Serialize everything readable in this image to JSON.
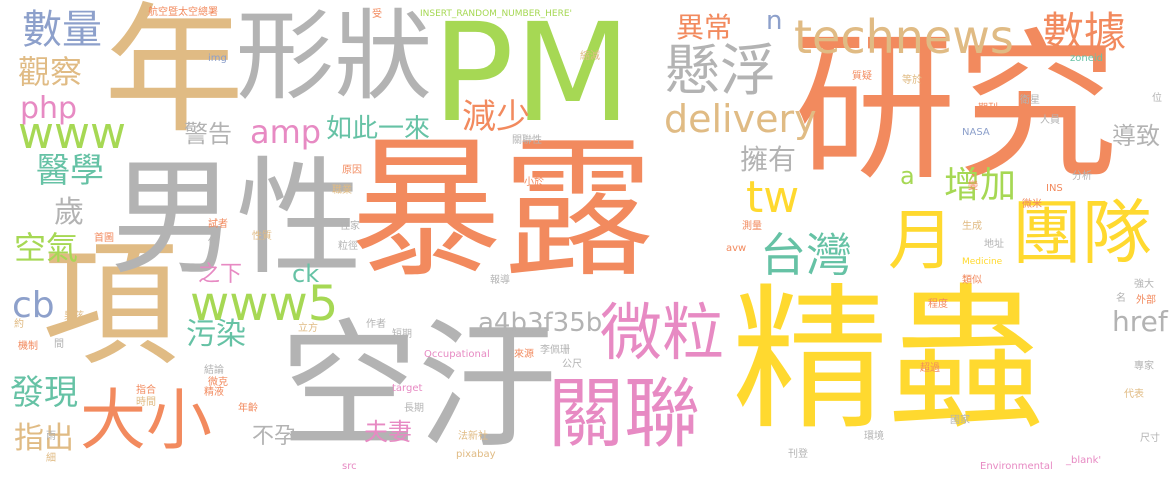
{
  "palette": {
    "orange": "#f28a5e",
    "tan": "#e0bb84",
    "gray": "#b3b3b3",
    "green": "#a6d854",
    "yellow": "#ffd92f",
    "pink": "#e78ac3",
    "teal": "#66c2a5",
    "blue": "#8da0cb"
  },
  "words": [
    "暴露",
    "精蟲",
    "研究",
    "PM",
    "年",
    "項",
    "男性",
    "空汙",
    "形狀",
    "technews",
    "關聯",
    "微粒",
    "大小",
    "團隊",
    "台灣",
    "月",
    "www5",
    "www",
    "懸浮",
    "數據",
    "delivery",
    "數量",
    "觀察",
    "php",
    "amp",
    "如此一來",
    "減少",
    "異常",
    "tw",
    "增加",
    "擁有",
    "a4b3f35b",
    "href",
    "cb",
    "空氣",
    "醫學",
    "歲",
    "發現",
    "指出",
    "污染",
    "夫妻",
    "不孕",
    "之下",
    "ck",
    "警告",
    "導致",
    "n",
    "a",
    "INSERT_RANDOM_NUMBER_HERE'",
    "航空暨太空總署",
    "受",
    "img",
    "zoneid",
    "縮減",
    "質疑",
    "等於",
    "期刊",
    "衛星",
    "位",
    "人員",
    "NASA",
    "分析",
    "INS",
    "關聯性",
    "原因",
    "小於",
    "職業",
    "變",
    "微米",
    "往家",
    "測量",
    "試者",
    "首圖",
    "僅",
    "性質",
    "生成",
    "地址",
    "粒徑",
    "avw",
    "Medicine",
    "類似",
    "報導",
    "強大",
    "名",
    "外部",
    "程度",
    "男孩",
    "約",
    "作者",
    "立方",
    "短期",
    "機制",
    "間",
    "Occupational",
    "李佩珊",
    "來源",
    "公尺",
    "結論",
    "微克",
    "指合",
    "精液",
    "時間",
    "超過",
    "專家",
    "代表",
    "target",
    "年齡",
    "長期",
    "國家",
    "雨",
    "細",
    "法新社",
    "尺寸",
    "src",
    "pixabay",
    "環境",
    "刊登",
    "Environmental",
    "_blank'"
  ]
}
